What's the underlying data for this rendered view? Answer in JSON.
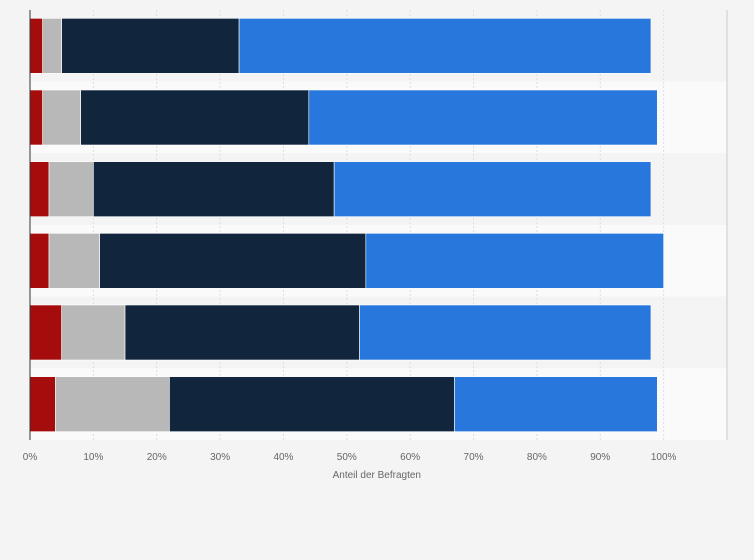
{
  "chart_data": {
    "type": "bar",
    "orientation": "horizontal",
    "stacked": true,
    "categories": [
      "",
      "",
      "",
      "",
      "",
      ""
    ],
    "series": [
      {
        "values": [
          2,
          2,
          3,
          3,
          5,
          4
        ],
        "color": "#a50d0d"
      },
      {
        "values": [
          3,
          6,
          7,
          8,
          10,
          18
        ],
        "color": "#b8b8b8"
      },
      {
        "values": [
          28,
          36,
          38,
          42,
          37,
          45
        ],
        "color": "#11253d"
      },
      {
        "values": [
          65,
          55,
          50,
          47,
          46,
          32
        ],
        "color": "#2877dd"
      }
    ],
    "xlim": [
      0,
      110
    ],
    "xticks": [
      0,
      10,
      20,
      30,
      40,
      50,
      60,
      70,
      80,
      90,
      100
    ],
    "xtick_labels": [
      "0%",
      "10%",
      "20%",
      "30%",
      "40%",
      "50%",
      "60%",
      "70%",
      "80%",
      "90%",
      "100%"
    ],
    "xlabel": "Anteil der Befragten",
    "grid": true,
    "legend": "none"
  }
}
